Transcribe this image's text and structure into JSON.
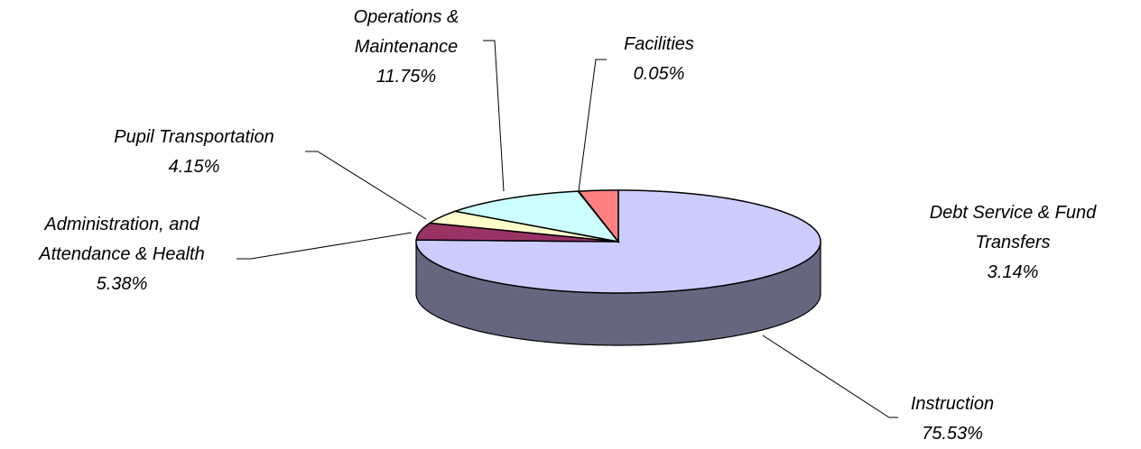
{
  "chart_data": {
    "type": "pie",
    "categories": [
      "Instruction",
      "Administration, and Attendance & Health",
      "Pupil Transportation",
      "Operations & Maintenance",
      "Facilities",
      "Debt Service & Fund Transfers"
    ],
    "values": [
      75.53,
      5.38,
      4.15,
      11.75,
      0.05,
      3.14
    ],
    "value_labels": [
      "75.53%",
      "5.38%",
      "4.15%",
      "11.75%",
      "0.05%",
      "3.14%"
    ],
    "colors": [
      "#CCCCFF",
      "#993366",
      "#FFFFCC",
      "#CCFFFF",
      "#FFFFFF",
      "#FF8080"
    ]
  }
}
